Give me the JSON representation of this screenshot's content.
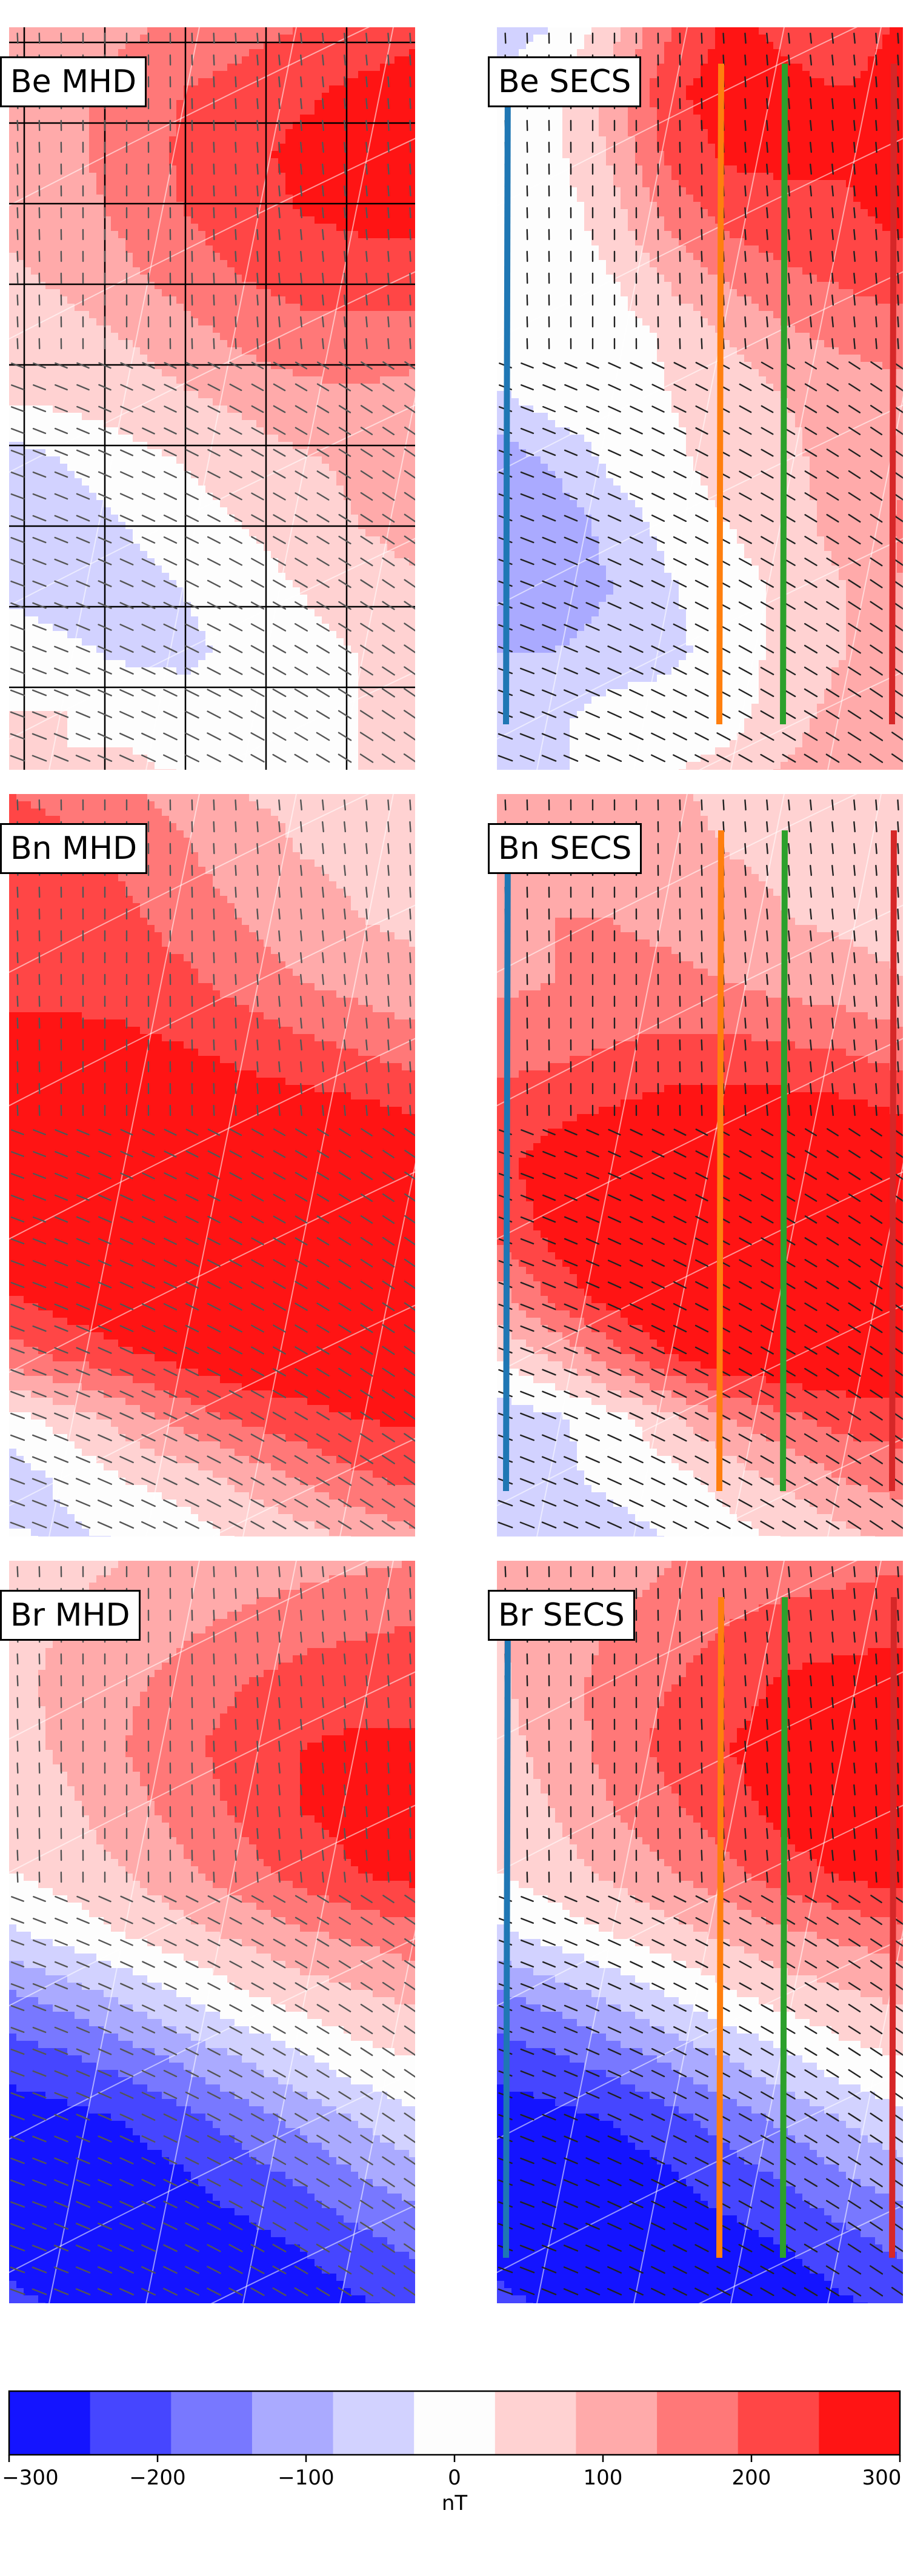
{
  "chart_data": {
    "type": "contour map",
    "panels": [
      {
        "label": "Be MHD",
        "component": "Be",
        "source": "MHD",
        "row": 0,
        "col": 0,
        "has_lines": false,
        "black_grid": true
      },
      {
        "label": "Be SECS",
        "component": "Be",
        "source": "SECS",
        "row": 0,
        "col": 1,
        "has_lines": true,
        "black_grid": false
      },
      {
        "label": "Bn MHD",
        "component": "Bn",
        "source": "MHD",
        "row": 1,
        "col": 0,
        "has_lines": false,
        "black_grid": false
      },
      {
        "label": "Bn SECS",
        "component": "Bn",
        "source": "SECS",
        "row": 1,
        "col": 1,
        "has_lines": true,
        "black_grid": false
      },
      {
        "label": "Br MHD",
        "component": "Br",
        "source": "MHD",
        "row": 2,
        "col": 0,
        "has_lines": false,
        "black_grid": false
      },
      {
        "label": "Br SECS",
        "component": "Br",
        "source": "SECS",
        "row": 2,
        "col": 1,
        "has_lines": true,
        "black_grid": false
      }
    ],
    "fields": {
      "Be": [
        [
          60,
          70,
          90,
          110,
          130,
          150,
          170,
          190
        ],
        [
          70,
          90,
          120,
          150,
          170,
          190,
          210,
          220
        ],
        [
          70,
          90,
          120,
          160,
          190,
          210,
          220,
          230
        ],
        [
          60,
          80,
          110,
          150,
          180,
          200,
          210,
          215
        ],
        [
          40,
          60,
          90,
          120,
          150,
          170,
          180,
          180
        ],
        [
          20,
          30,
          50,
          80,
          110,
          130,
          130,
          120
        ],
        [
          0,
          10,
          20,
          40,
          60,
          80,
          90,
          80
        ],
        [
          -80,
          -50,
          -20,
          0,
          20,
          40,
          60,
          70
        ],
        [
          -90,
          -80,
          -50,
          -20,
          0,
          20,
          50,
          70
        ],
        [
          -60,
          -80,
          -70,
          -50,
          -20,
          0,
          20,
          40
        ],
        [
          -20,
          -40,
          -60,
          -60,
          -40,
          -10,
          0,
          10
        ],
        [
          0,
          0,
          -10,
          -30,
          -40,
          -20,
          0,
          0
        ],
        [
          0,
          0,
          10,
          0,
          0,
          0,
          0,
          0
        ]
      ],
      "Bn": [
        [
          150,
          140,
          110,
          80,
          50,
          40,
          30,
          20
        ],
        [
          170,
          160,
          140,
          110,
          70,
          50,
          40,
          30
        ],
        [
          180,
          180,
          160,
          130,
          100,
          70,
          50,
          40
        ],
        [
          190,
          190,
          180,
          160,
          130,
          100,
          80,
          60
        ],
        [
          210,
          210,
          210,
          200,
          180,
          160,
          140,
          120
        ],
        [
          230,
          240,
          240,
          240,
          230,
          220,
          210,
          190
        ],
        [
          250,
          260,
          270,
          270,
          270,
          260,
          260,
          250
        ],
        [
          240,
          260,
          270,
          280,
          280,
          280,
          270,
          270
        ],
        [
          200,
          230,
          250,
          260,
          270,
          270,
          270,
          270
        ],
        [
          130,
          160,
          190,
          220,
          240,
          250,
          250,
          250
        ],
        [
          -20,
          20,
          70,
          120,
          160,
          180,
          200,
          210
        ],
        [
          -80,
          -40,
          0,
          20,
          60,
          100,
          140,
          160
        ],
        [
          -40,
          -60,
          -50,
          -30,
          0,
          20,
          50,
          80
        ]
      ],
      "Br": [
        [
          30,
          40,
          50,
          60,
          70,
          80,
          90,
          100
        ],
        [
          40,
          50,
          70,
          90,
          110,
          130,
          140,
          150
        ],
        [
          40,
          60,
          90,
          120,
          150,
          170,
          180,
          180
        ],
        [
          30,
          60,
          100,
          140,
          170,
          200,
          210,
          210
        ],
        [
          20,
          40,
          80,
          120,
          160,
          200,
          220,
          230
        ],
        [
          0,
          20,
          50,
          90,
          130,
          170,
          200,
          220
        ],
        [
          -60,
          -30,
          0,
          30,
          60,
          90,
          110,
          130
        ],
        [
          -160,
          -130,
          -90,
          -50,
          -10,
          20,
          40,
          60
        ],
        [
          -230,
          -210,
          -180,
          -140,
          -100,
          -60,
          -20,
          0
        ],
        [
          -280,
          -270,
          -250,
          -220,
          -180,
          -140,
          -100,
          -60
        ],
        [
          -290,
          -290,
          -280,
          -260,
          -230,
          -200,
          -160,
          -130
        ],
        [
          -270,
          -290,
          -290,
          -280,
          -270,
          -250,
          -220,
          -190
        ],
        [
          -230,
          -260,
          -280,
          -290,
          -290,
          -280,
          -260,
          -240
        ]
      ]
    },
    "secs_offsets": {
      "Be": [
        [
          -120,
          -120,
          -60,
          40,
          80,
          40,
          0,
          20
        ],
        [
          -120,
          -110,
          -40,
          40,
          60,
          20,
          -10,
          10
        ],
        [
          -110,
          -100,
          -60,
          10,
          20,
          0,
          -10,
          10
        ],
        [
          -100,
          -110,
          -80,
          -30,
          -10,
          -10,
          -20,
          0
        ],
        [
          -60,
          -90,
          -90,
          -60,
          -40,
          -30,
          -20,
          0
        ],
        [
          -40,
          -70,
          -80,
          -70,
          -60,
          -40,
          -20,
          0
        ],
        [
          -60,
          -40,
          -40,
          -40,
          -40,
          -30,
          -20,
          0
        ],
        [
          -60,
          -40,
          -20,
          -10,
          0,
          0,
          10,
          20
        ],
        [
          -60,
          -60,
          -30,
          -10,
          0,
          10,
          20,
          40
        ],
        [
          -70,
          -50,
          -30,
          -5,
          0,
          10,
          30,
          60
        ],
        [
          -80,
          -60,
          -20,
          0,
          10,
          30,
          50,
          80
        ],
        [
          -80,
          -60,
          -20,
          0,
          20,
          50,
          70,
          90
        ],
        [
          -70,
          -60,
          -20,
          0,
          20,
          60,
          80,
          100
        ]
      ],
      "Bn": [
        [
          -60,
          -60,
          -40,
          -20,
          -20,
          -10,
          0,
          0
        ],
        [
          -80,
          -70,
          -50,
          -30,
          -20,
          -10,
          0,
          0
        ],
        [
          -90,
          -80,
          -60,
          -40,
          -30,
          -20,
          -10,
          -10
        ],
        [
          -100,
          -90,
          -70,
          -50,
          -30,
          -20,
          -10,
          -10
        ],
        [
          -90,
          -80,
          -60,
          -40,
          -20,
          -10,
          0,
          0
        ],
        [
          -60,
          -50,
          -40,
          -20,
          -10,
          0,
          0,
          0
        ],
        [
          -60,
          -40,
          -30,
          -20,
          0,
          0,
          0,
          0
        ],
        [
          -80,
          -40,
          -20,
          0,
          0,
          0,
          0,
          0
        ],
        [
          -120,
          -60,
          -20,
          0,
          0,
          0,
          0,
          0
        ],
        [
          -120,
          -100,
          -60,
          -20,
          0,
          0,
          0,
          0
        ],
        [
          -60,
          -80,
          -90,
          -80,
          -60,
          -40,
          -30,
          -30
        ],
        [
          0,
          -20,
          -40,
          -40,
          -40,
          -40,
          -40,
          -40
        ],
        [
          -30,
          -20,
          -20,
          -20,
          -20,
          -20,
          -20,
          -20
        ]
      ],
      "Br": [
        [
          20,
          20,
          30,
          40,
          40,
          40,
          40,
          40
        ],
        [
          10,
          20,
          30,
          30,
          40,
          40,
          40,
          40
        ],
        [
          0,
          20,
          30,
          30,
          30,
          40,
          40,
          40
        ],
        [
          0,
          10,
          20,
          30,
          30,
          30,
          30,
          30
        ],
        [
          0,
          10,
          20,
          20,
          20,
          20,
          20,
          20
        ],
        [
          0,
          10,
          10,
          10,
          10,
          10,
          10,
          10
        ],
        [
          0,
          0,
          0,
          0,
          0,
          0,
          0,
          0
        ],
        [
          0,
          0,
          0,
          0,
          0,
          0,
          0,
          0
        ],
        [
          0,
          0,
          0,
          0,
          0,
          0,
          0,
          0
        ],
        [
          0,
          0,
          0,
          0,
          0,
          0,
          0,
          0
        ],
        [
          0,
          0,
          0,
          0,
          0,
          0,
          0,
          0
        ],
        [
          0,
          0,
          0,
          0,
          0,
          0,
          0,
          0
        ],
        [
          0,
          0,
          0,
          0,
          0,
          0,
          0,
          0
        ]
      ]
    },
    "secs_lines": [
      {
        "color": "#1f77b4",
        "name": "blue"
      },
      {
        "color": "#ff7f0e",
        "name": "orange"
      },
      {
        "color": "#2ca02c",
        "name": "green"
      },
      {
        "color": "#d62728",
        "name": "red"
      }
    ],
    "colorbar": {
      "ticks": [
        -300,
        -200,
        -100,
        0,
        100,
        200,
        300
      ],
      "tick_labels": [
        "−300",
        "−200",
        "−100",
        "0",
        "100",
        "200",
        "300"
      ],
      "levels": [
        -300,
        -250,
        -200,
        -150,
        -100,
        -50,
        0,
        50,
        100,
        150,
        200,
        250,
        300
      ],
      "colors": [
        "#1414ff",
        "#4646ff",
        "#7878ff",
        "#aaaaff",
        "#d2d2ff",
        "#fdfdfd",
        "#ffd2d2",
        "#ffaaaa",
        "#ff7878",
        "#ff4646",
        "#ff1414"
      ],
      "label": "nT"
    }
  }
}
